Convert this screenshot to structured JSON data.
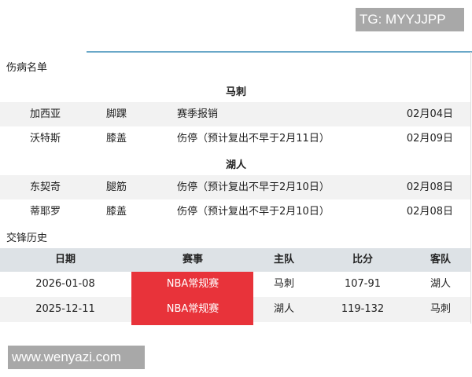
{
  "watermarks": {
    "top": "TG: MYYJJPP",
    "bottom": "www.wenyazi.com"
  },
  "injury": {
    "title": "伤病名单",
    "teams": [
      {
        "name": "马刺",
        "players": [
          {
            "name": "加西亚",
            "part": "脚踝",
            "status": "赛季报销",
            "date": "02月04日"
          },
          {
            "name": "沃特斯",
            "part": "膝盖",
            "status": "伤停（预计复出不早于2月11日）",
            "date": "02月09日"
          }
        ]
      },
      {
        "name": "湖人",
        "players": [
          {
            "name": "东契奇",
            "part": "腿筋",
            "status": "伤停（预计复出不早于2月10日）",
            "date": "02月08日"
          },
          {
            "name": "蒂耶罗",
            "part": "膝盖",
            "status": "伤停（预计复出不早于2月10日）",
            "date": "02月08日"
          }
        ]
      }
    ]
  },
  "h2h": {
    "title": "交锋历史",
    "headers": [
      "日期",
      "赛事",
      "主队",
      "比分",
      "客队"
    ],
    "rows": [
      [
        "2026-01-08",
        "NBA常规赛",
        "马刺",
        "107-91",
        "湖人"
      ],
      [
        "2025-12-11",
        "NBA常规赛",
        "湖人",
        "119-132",
        "马刺"
      ]
    ],
    "highlight_color": "#e8333a"
  }
}
